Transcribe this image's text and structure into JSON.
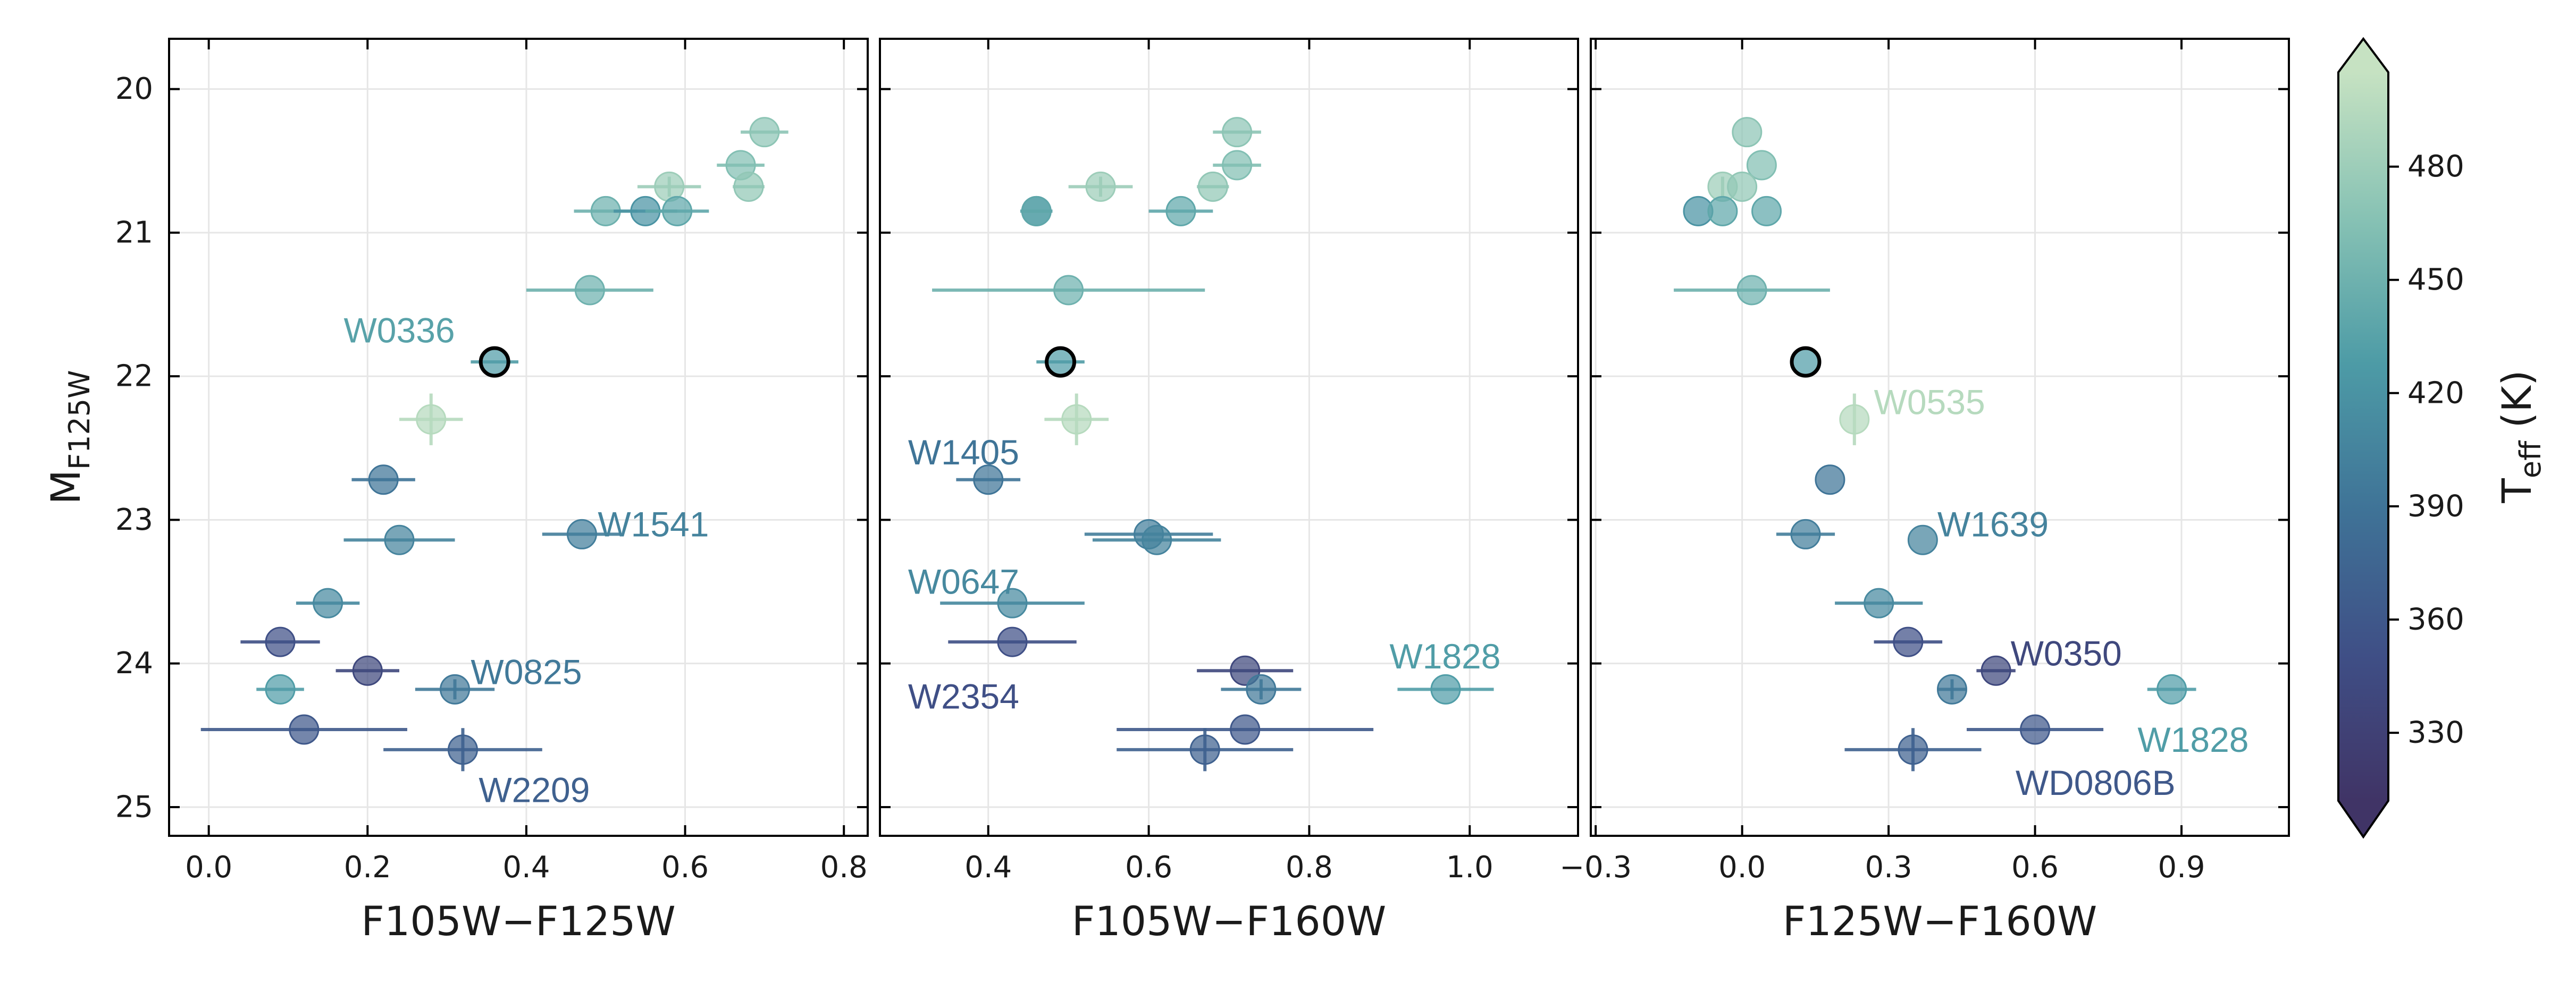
{
  "colorbar": {
    "label": "T",
    "label_sub": "eff",
    "label_unit": " (K)",
    "range": [
      312,
      505
    ],
    "ticks": [
      "330",
      "360",
      "390",
      "420",
      "450",
      "480"
    ],
    "tick_values": [
      330,
      360,
      390,
      420,
      450,
      480
    ],
    "colors": [
      "#403466",
      "#3f4f86",
      "#3f7397",
      "#4d9ba6",
      "#87c2b4",
      "#c6e2c2"
    ]
  },
  "chart_data": [
    {
      "type": "scatter",
      "xlabel": "F105W−F125W",
      "ylabel": "M",
      "ylabel_sub": "F125W",
      "xlim": [
        -0.05,
        0.83
      ],
      "ylim": [
        25.2,
        19.65
      ],
      "xticks": [
        0.0,
        0.2,
        0.4,
        0.6,
        0.8
      ],
      "xtick_labels": [
        "0.0",
        "0.2",
        "0.4",
        "0.6",
        "0.8"
      ],
      "yticks": [
        20,
        21,
        22,
        23,
        24,
        25
      ],
      "ytick_labels": [
        "20",
        "21",
        "22",
        "23",
        "24",
        "25"
      ],
      "points": [
        {
          "x": 0.7,
          "y": 20.3,
          "xerr": 0.03,
          "yerr": 0.0,
          "teff": 470
        },
        {
          "x": 0.67,
          "y": 20.53,
          "xerr": 0.03,
          "yerr": 0.0,
          "teff": 463
        },
        {
          "x": 0.58,
          "y": 20.68,
          "xerr": 0.04,
          "yerr": 0.07,
          "teff": 480
        },
        {
          "x": 0.68,
          "y": 20.68,
          "xerr": 0.02,
          "yerr": 0.0,
          "teff": 473
        },
        {
          "x": 0.5,
          "y": 20.85,
          "xerr": 0.04,
          "yerr": 0.0,
          "teff": 450
        },
        {
          "x": 0.55,
          "y": 20.85,
          "xerr": 0.04,
          "yerr": 0.0,
          "teff": 420
        },
        {
          "x": 0.59,
          "y": 20.85,
          "xerr": 0.04,
          "yerr": 0.0,
          "teff": 440
        },
        {
          "x": 0.48,
          "y": 21.4,
          "xerr": 0.08,
          "yerr": 0.0,
          "teff": 450
        },
        {
          "x": 0.36,
          "y": 21.9,
          "xerr": 0.03,
          "yerr": 0.0,
          "teff": 430,
          "highlight": true
        },
        {
          "x": 0.28,
          "y": 22.3,
          "xerr": 0.04,
          "yerr": 0.18,
          "teff": 495
        },
        {
          "x": 0.22,
          "y": 22.72,
          "xerr": 0.04,
          "yerr": 0.0,
          "teff": 390
        },
        {
          "x": 0.24,
          "y": 23.14,
          "xerr": 0.07,
          "yerr": 0.0,
          "teff": 405
        },
        {
          "x": 0.47,
          "y": 23.1,
          "xerr": 0.05,
          "yerr": 0.0,
          "teff": 400
        },
        {
          "x": 0.15,
          "y": 23.58,
          "xerr": 0.04,
          "yerr": 0.0,
          "teff": 410
        },
        {
          "x": 0.09,
          "y": 23.85,
          "xerr": 0.05,
          "yerr": 0.0,
          "teff": 350
        },
        {
          "x": 0.2,
          "y": 24.05,
          "xerr": 0.04,
          "yerr": 0.0,
          "teff": 340
        },
        {
          "x": 0.09,
          "y": 24.18,
          "xerr": 0.03,
          "yerr": 0.0,
          "teff": 430
        },
        {
          "x": 0.31,
          "y": 24.18,
          "xerr": 0.05,
          "yerr": 0.07,
          "teff": 395
        },
        {
          "x": 0.12,
          "y": 24.46,
          "xerr": 0.13,
          "yerr": 0.0,
          "teff": 360
        },
        {
          "x": 0.32,
          "y": 24.6,
          "xerr": 0.1,
          "yerr": 0.15,
          "teff": 370
        }
      ],
      "annotations": [
        {
          "text": "W0336",
          "x": 0.17,
          "y": 21.7,
          "teff": 435
        },
        {
          "text": "W1541",
          "x": 0.49,
          "y": 23.05,
          "teff": 405
        },
        {
          "text": "W0825",
          "x": 0.33,
          "y": 24.08,
          "teff": 395
        },
        {
          "text": "W2209",
          "x": 0.34,
          "y": 24.9,
          "teff": 370
        }
      ]
    },
    {
      "type": "scatter",
      "xlabel": "F105W−F160W",
      "xlim": [
        0.265,
        1.135
      ],
      "ylim": [
        25.2,
        19.65
      ],
      "xticks": [
        0.4,
        0.6,
        0.8,
        1.0
      ],
      "xtick_labels": [
        "0.4",
        "0.6",
        "0.8",
        "1.0"
      ],
      "yticks": [
        20,
        21,
        22,
        23,
        24,
        25
      ],
      "points": [
        {
          "x": 0.71,
          "y": 20.3,
          "xerr": 0.03,
          "yerr": 0.0,
          "teff": 470
        },
        {
          "x": 0.71,
          "y": 20.53,
          "xerr": 0.03,
          "yerr": 0.0,
          "teff": 463
        },
        {
          "x": 0.54,
          "y": 20.68,
          "xerr": 0.04,
          "yerr": 0.07,
          "teff": 480
        },
        {
          "x": 0.68,
          "y": 20.68,
          "xerr": 0.02,
          "yerr": 0.0,
          "teff": 473
        },
        {
          "x": 0.46,
          "y": 20.85,
          "xerr": 0.02,
          "yerr": 0.0,
          "teff": 420
        },
        {
          "x": 0.46,
          "y": 20.85,
          "xerr": 0.02,
          "yerr": 0.0,
          "teff": 440
        },
        {
          "x": 0.64,
          "y": 20.85,
          "xerr": 0.04,
          "yerr": 0.0,
          "teff": 440
        },
        {
          "x": 0.5,
          "y": 21.4,
          "xerr": 0.17,
          "yerr": 0.0,
          "teff": 450
        },
        {
          "x": 0.49,
          "y": 21.9,
          "xerr": 0.03,
          "yerr": 0.0,
          "teff": 430,
          "highlight": true
        },
        {
          "x": 0.51,
          "y": 22.3,
          "xerr": 0.04,
          "yerr": 0.18,
          "teff": 495
        },
        {
          "x": 0.4,
          "y": 22.72,
          "xerr": 0.04,
          "yerr": 0.0,
          "teff": 390
        },
        {
          "x": 0.6,
          "y": 23.1,
          "xerr": 0.08,
          "yerr": 0.0,
          "teff": 400
        },
        {
          "x": 0.61,
          "y": 23.14,
          "xerr": 0.08,
          "yerr": 0.0,
          "teff": 405
        },
        {
          "x": 0.43,
          "y": 23.58,
          "xerr": 0.09,
          "yerr": 0.0,
          "teff": 410
        },
        {
          "x": 0.43,
          "y": 23.85,
          "xerr": 0.08,
          "yerr": 0.0,
          "teff": 350
        },
        {
          "x": 0.72,
          "y": 24.05,
          "xerr": 0.06,
          "yerr": 0.0,
          "teff": 340
        },
        {
          "x": 0.74,
          "y": 24.18,
          "xerr": 0.05,
          "yerr": 0.07,
          "teff": 395
        },
        {
          "x": 0.97,
          "y": 24.18,
          "xerr": 0.06,
          "yerr": 0.0,
          "teff": 430
        },
        {
          "x": 0.72,
          "y": 24.46,
          "xerr": 0.16,
          "yerr": 0.0,
          "teff": 360
        },
        {
          "x": 0.67,
          "y": 24.6,
          "xerr": 0.11,
          "yerr": 0.15,
          "teff": 370
        }
      ],
      "annotations": [
        {
          "text": "W1405",
          "x": 0.3,
          "y": 22.55,
          "teff": 390
        },
        {
          "text": "W0647",
          "x": 0.3,
          "y": 23.45,
          "teff": 410
        },
        {
          "text": "W2354",
          "x": 0.3,
          "y": 24.25,
          "teff": 350
        },
        {
          "text": "W1828",
          "x": 0.9,
          "y": 23.97,
          "teff": 430
        }
      ]
    },
    {
      "type": "scatter",
      "xlabel": "F125W−F160W",
      "xlim": [
        -0.31,
        1.12
      ],
      "ylim": [
        25.2,
        19.65
      ],
      "xticks": [
        -0.3,
        0.0,
        0.3,
        0.6,
        0.9
      ],
      "xtick_labels": [
        "−0.3",
        "0.0",
        "0.3",
        "0.6",
        "0.9"
      ],
      "yticks": [
        20,
        21,
        22,
        23,
        24,
        25
      ],
      "points": [
        {
          "x": 0.01,
          "y": 20.3,
          "xerr": 0.0,
          "yerr": 0.0,
          "teff": 470
        },
        {
          "x": 0.04,
          "y": 20.53,
          "xerr": 0.0,
          "yerr": 0.0,
          "teff": 463
        },
        {
          "x": -0.04,
          "y": 20.68,
          "xerr": 0.0,
          "yerr": 0.07,
          "teff": 480
        },
        {
          "x": 0.0,
          "y": 20.68,
          "xerr": 0.0,
          "yerr": 0.0,
          "teff": 473
        },
        {
          "x": -0.09,
          "y": 20.85,
          "xerr": 0.0,
          "yerr": 0.0,
          "teff": 420
        },
        {
          "x": -0.04,
          "y": 20.85,
          "xerr": 0.0,
          "yerr": 0.0,
          "teff": 440
        },
        {
          "x": 0.05,
          "y": 20.85,
          "xerr": 0.0,
          "yerr": 0.0,
          "teff": 440
        },
        {
          "x": 0.02,
          "y": 21.4,
          "xerr": 0.16,
          "yerr": 0.0,
          "teff": 450
        },
        {
          "x": 0.13,
          "y": 21.9,
          "xerr": 0.0,
          "yerr": 0.0,
          "teff": 430,
          "highlight": true
        },
        {
          "x": 0.23,
          "y": 22.3,
          "xerr": 0.0,
          "yerr": 0.18,
          "teff": 495
        },
        {
          "x": 0.18,
          "y": 22.72,
          "xerr": 0.0,
          "yerr": 0.0,
          "teff": 390
        },
        {
          "x": 0.13,
          "y": 23.1,
          "xerr": 0.06,
          "yerr": 0.0,
          "teff": 400
        },
        {
          "x": 0.37,
          "y": 23.14,
          "xerr": 0.0,
          "yerr": 0.0,
          "teff": 405
        },
        {
          "x": 0.28,
          "y": 23.58,
          "xerr": 0.09,
          "yerr": 0.0,
          "teff": 410
        },
        {
          "x": 0.34,
          "y": 23.85,
          "xerr": 0.07,
          "yerr": 0.0,
          "teff": 350
        },
        {
          "x": 0.52,
          "y": 24.05,
          "xerr": 0.04,
          "yerr": 0.0,
          "teff": 340
        },
        {
          "x": 0.43,
          "y": 24.18,
          "xerr": 0.03,
          "yerr": 0.07,
          "teff": 395
        },
        {
          "x": 0.88,
          "y": 24.18,
          "xerr": 0.05,
          "yerr": 0.0,
          "teff": 430
        },
        {
          "x": 0.6,
          "y": 24.46,
          "xerr": 0.14,
          "yerr": 0.0,
          "teff": 360
        },
        {
          "x": 0.35,
          "y": 24.6,
          "xerr": 0.14,
          "yerr": 0.15,
          "teff": 370
        }
      ],
      "annotations": [
        {
          "text": "W0535",
          "x": 0.27,
          "y": 22.2,
          "teff": 495
        },
        {
          "text": "W1639",
          "x": 0.4,
          "y": 23.05,
          "teff": 405
        },
        {
          "text": "W0350",
          "x": 0.55,
          "y": 23.95,
          "teff": 340
        },
        {
          "text": "W1828",
          "x": 0.81,
          "y": 24.55,
          "teff": 430
        },
        {
          "text": "WD0806B",
          "x": 0.56,
          "y": 24.85,
          "teff": 360
        }
      ]
    }
  ]
}
